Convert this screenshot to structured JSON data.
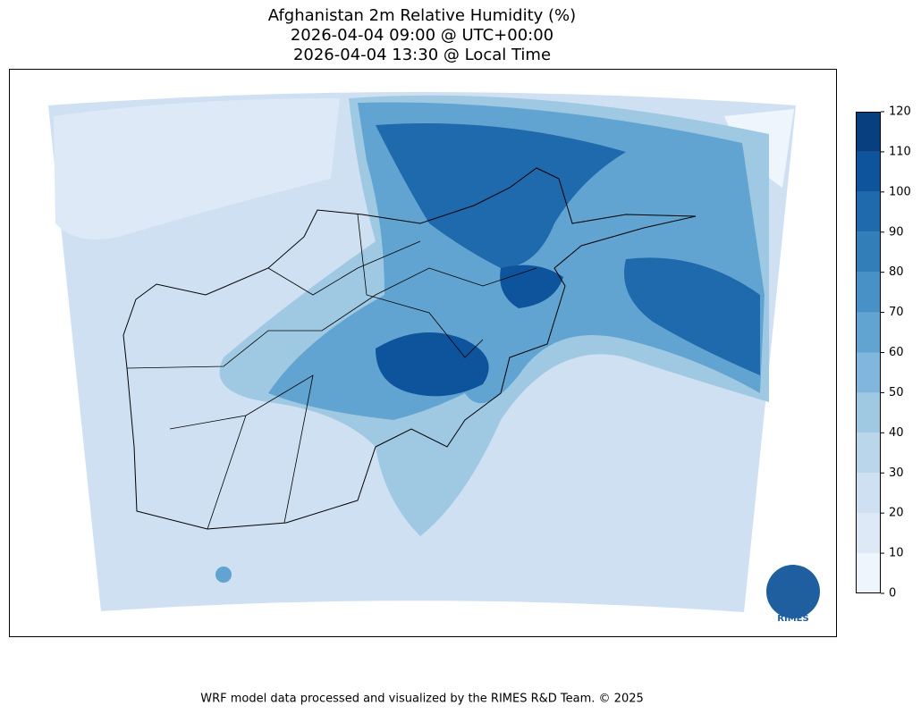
{
  "title": [
    "Afghanistan 2m Relative Humidity (%)",
    "2026-04-04 09:00 @ UTC+00:00",
    "2026-04-04 13:30 @ Local Time"
  ],
  "colorbar": {
    "ticks": [
      0,
      10,
      20,
      30,
      40,
      50,
      60,
      70,
      80,
      90,
      100,
      110,
      120
    ],
    "colors": [
      "#eff5fc",
      "#dde9f6",
      "#cfe0f2",
      "#bad6ea",
      "#9fc9e2",
      "#81b7dc",
      "#62a4d1",
      "#4891c6",
      "#327eb9",
      "#1f69ad",
      "#0d549d",
      "#08407f"
    ]
  },
  "logo": "RIMES",
  "footer": "WRF model data processed and visualized by the RIMES R&D Team. © 2025"
}
